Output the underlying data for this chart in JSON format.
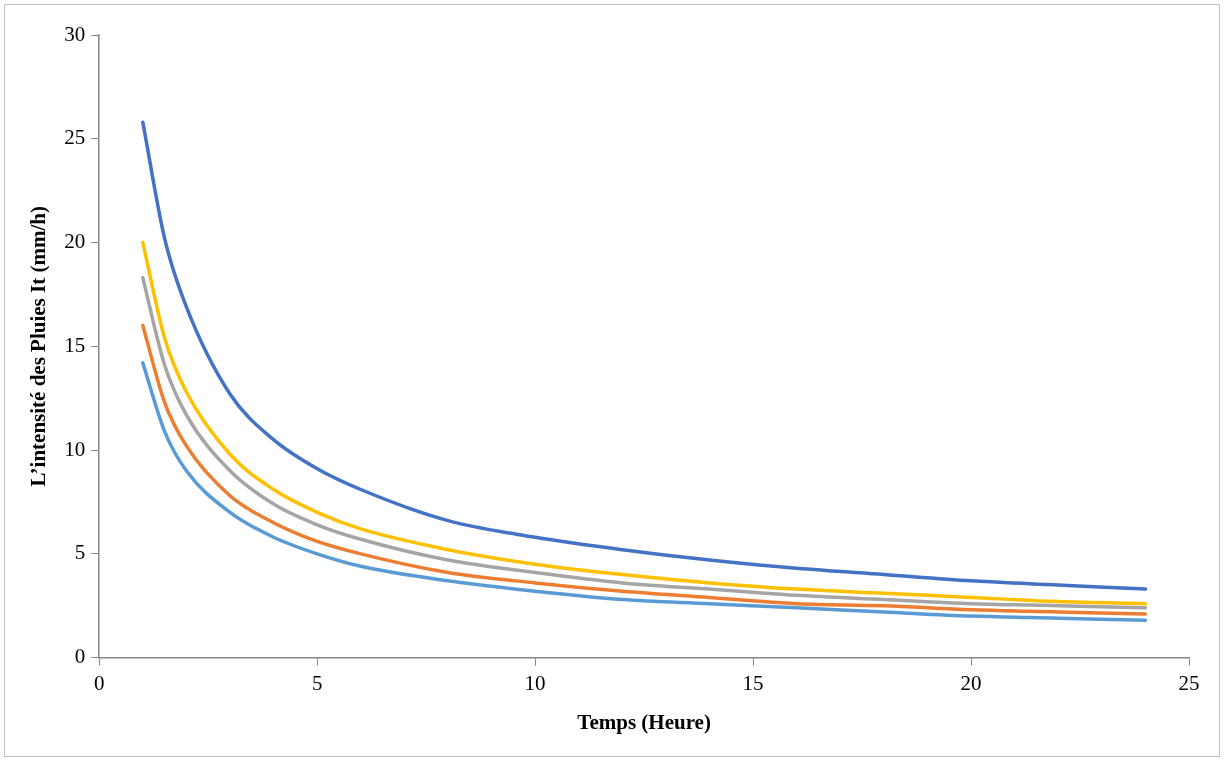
{
  "chart_data": {
    "type": "line",
    "xlabel": "Temps (Heure)",
    "ylabel": "L’intensité des Pluies It (mm/h)",
    "x": [
      1,
      1.5,
      2,
      3,
      4,
      5,
      6,
      8,
      10,
      12,
      14,
      16,
      18,
      20,
      22,
      24
    ],
    "series": [
      {
        "color": "#4472c4",
        "values": [
          25.8,
          20.2,
          16.9,
          12.7,
          10.5,
          9.1,
          8.1,
          6.6,
          5.8,
          5.2,
          4.7,
          4.3,
          4.0,
          3.7,
          3.5,
          3.3
        ]
      },
      {
        "color": "#ffc000",
        "values": [
          20.0,
          15.4,
          12.8,
          9.8,
          8.1,
          7.0,
          6.2,
          5.2,
          4.5,
          4.0,
          3.6,
          3.3,
          3.1,
          2.9,
          2.7,
          2.6
        ]
      },
      {
        "color": "#a5a5a5",
        "values": [
          18.3,
          14.1,
          11.7,
          9.0,
          7.4,
          6.4,
          5.7,
          4.7,
          4.1,
          3.6,
          3.3,
          3.0,
          2.8,
          2.6,
          2.5,
          2.4
        ]
      },
      {
        "color": "#ed7d31",
        "values": [
          16.0,
          12.3,
          10.2,
          7.8,
          6.5,
          5.6,
          5.0,
          4.1,
          3.6,
          3.2,
          2.9,
          2.6,
          2.5,
          2.3,
          2.2,
          2.1
        ]
      },
      {
        "color": "#5b9bd5",
        "values": [
          14.2,
          10.9,
          9.0,
          7.0,
          5.8,
          5.0,
          4.4,
          3.7,
          3.2,
          2.8,
          2.6,
          2.4,
          2.2,
          2.0,
          1.9,
          1.8
        ]
      }
    ],
    "xlim": [
      0,
      25
    ],
    "xticks": [
      0,
      5,
      10,
      15,
      20,
      25
    ],
    "ylim": [
      0,
      30
    ],
    "yticks": [
      0,
      5,
      10,
      15,
      20,
      25,
      30
    ],
    "grid": false,
    "legend": false,
    "marker": "none",
    "line_style": "solid"
  }
}
